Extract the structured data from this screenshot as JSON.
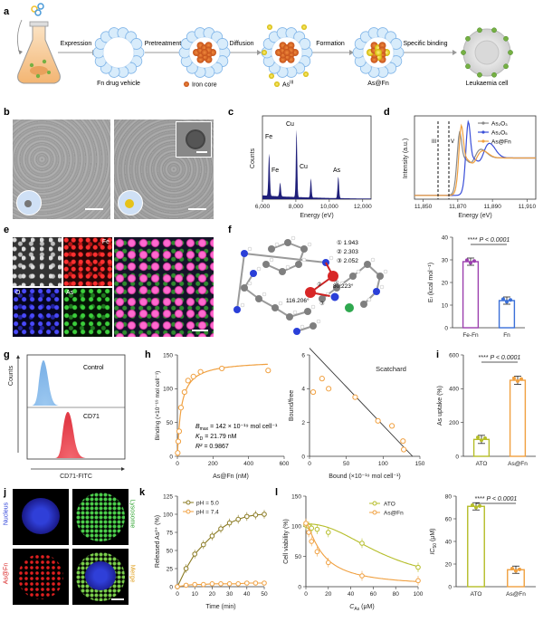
{
  "panel_letters": [
    "a",
    "b",
    "c",
    "d",
    "e",
    "f",
    "g",
    "h",
    "i",
    "j",
    "k",
    "l"
  ],
  "colors": {
    "orange": "#f0a040",
    "blue": "#3a6fd8",
    "green": "#b5bd28",
    "purple": "#9b3fae",
    "red": "#e23b3b",
    "navy": "#1a1a7a",
    "grey": "#7f7f7f"
  },
  "panel_a": {
    "arrows": [
      "Expression",
      "Pretreatment",
      "Diffusion",
      "Formation",
      "Specific binding"
    ],
    "stages": [
      "Fn drug vehicle",
      "Iron core",
      "As@Fn",
      "Leukaemia cell"
    ],
    "legend": [
      "Iron core",
      "As"
    ],
    "legend_sup": "III"
  },
  "panel_b": {
    "alt": "TEM micrographs of Fn and As@Fn nanocages"
  },
  "panel_e": {
    "channels": [
      "Fe",
      "O",
      "As"
    ]
  },
  "panel_f": {
    "distances": [
      "① 1.943",
      "② 2.303",
      "③ 2.052"
    ],
    "angles": [
      "80.223°",
      "116.206°"
    ],
    "atom_labels": [
      "①",
      "②",
      "③"
    ]
  },
  "panel_g": {
    "labels": [
      "Control",
      "CD71"
    ],
    "xlabel": "CD71-FITC",
    "ylabel": "Counts"
  },
  "panel_h": {
    "bmax": "142 × 10⁻¹⁹ mol cell⁻¹",
    "kd": "21.79 nM",
    "r2": "0.9867",
    "bmax_label": "B",
    "bmax_sub": "max",
    "kd_label": "K",
    "kd_sub": "D",
    "r2_label": "R² ="
  },
  "panel_j": {
    "labels": [
      "Nucleus",
      "Lysosome",
      "As@Fn",
      "Merge"
    ]
  },
  "chart_data": [
    {
      "id": "c",
      "type": "line",
      "xlabel": "Energy (eV)",
      "ylabel": "Counts",
      "xlim": [
        6000,
        12500
      ],
      "xticks": [
        "6,000",
        "8,000",
        "10,000",
        "12,000"
      ],
      "peak_labels": [
        "Fe",
        "Fe",
        "Cu",
        "Cu",
        "As"
      ]
    },
    {
      "id": "d",
      "type": "line",
      "xlabel": "Energy (eV)",
      "ylabel": "Intensity (a.u.)",
      "xticks": [
        "11,850",
        "11,870",
        "11,890",
        "11,910"
      ],
      "series": [
        {
          "name": "As₂O₃"
        },
        {
          "name": "As₂O₅"
        },
        {
          "name": "As@Fn"
        }
      ],
      "markers": [
        "III",
        "V"
      ]
    },
    {
      "id": "f",
      "type": "bar",
      "ylabel": "Eₗ (kcal mol⁻¹)",
      "categories": [
        "Fe-Fn",
        "Fn"
      ],
      "values": [
        29.2,
        12.0
      ],
      "ylim": [
        0,
        40
      ],
      "yticks": [
        "0",
        "10",
        "20",
        "30",
        "40"
      ],
      "significance": "****",
      "p_text": "P < 0.0001"
    },
    {
      "id": "h1",
      "type": "scatter",
      "xlabel": "As@Fn (nM)",
      "ylabel": "Binding (×10⁻¹⁹ mol cell⁻¹)",
      "xlim": [
        0,
        600
      ],
      "ylim": [
        0,
        150
      ],
      "xticks": [
        "0",
        "200",
        "400",
        "600"
      ],
      "yticks": [
        "0",
        "50",
        "100",
        "150"
      ],
      "x": [
        2,
        5,
        10,
        20,
        40,
        60,
        90,
        130,
        250,
        510
      ],
      "y": [
        5,
        22,
        37,
        72,
        95,
        112,
        118,
        125,
        130,
        127
      ]
    },
    {
      "id": "h2",
      "type": "scatter",
      "title": "Scatchard",
      "xlabel": "Bound (×10⁻¹⁹ mol cell⁻¹)",
      "ylabel": "Bound/free",
      "xlim": [
        0,
        150
      ],
      "ylim": [
        0,
        6
      ],
      "xticks": [
        "0",
        "50",
        "100",
        "150"
      ],
      "yticks": [
        "0",
        "2",
        "4",
        "6"
      ],
      "x": [
        5,
        17,
        26,
        62,
        93,
        112,
        127,
        128
      ],
      "y": [
        3.8,
        4.6,
        4.0,
        3.5,
        2.1,
        1.8,
        0.9,
        0.4
      ],
      "fit": [
        [
          0,
          6.4
        ],
        [
          140,
          0.0
        ]
      ]
    },
    {
      "id": "i",
      "type": "bar",
      "ylabel": "As uptake (%)",
      "categories": [
        "ATO",
        "As@Fn"
      ],
      "values": [
        100,
        450
      ],
      "ylim": [
        0,
        600
      ],
      "yticks": [
        "0",
        "200",
        "400",
        "600"
      ],
      "significance": "****",
      "p_text": "P < 0.0001"
    },
    {
      "id": "k",
      "type": "line",
      "xlabel": "Time (min)",
      "ylabel": "Released As³⁺ (%)",
      "xlim": [
        0,
        50
      ],
      "ylim": [
        0,
        125
      ],
      "xticks": [
        "0",
        "10",
        "20",
        "30",
        "40",
        "50"
      ],
      "yticks": [
        "0",
        "25",
        "50",
        "75",
        "100",
        "125"
      ],
      "x": [
        0,
        5,
        10,
        15,
        20,
        25,
        30,
        35,
        40,
        45,
        50
      ],
      "series": [
        {
          "name": "pH = 5.0",
          "values": [
            0,
            25,
            45,
            58,
            70,
            80,
            88,
            93,
            97,
            99,
            100
          ]
        },
        {
          "name": "pH = 7.4",
          "values": [
            0,
            2,
            3,
            3,
            4,
            4,
            4,
            4,
            5,
            5,
            5
          ]
        }
      ]
    },
    {
      "id": "l1",
      "type": "line",
      "xlabel": "C",
      "xlabel_sub": "As",
      "xlabel_unit": "(μM)",
      "ylabel": "Cell viability (%)",
      "xlim": [
        0,
        100
      ],
      "ylim": [
        0,
        150
      ],
      "xticks": [
        "0",
        "20",
        "40",
        "60",
        "80",
        "100"
      ],
      "yticks": [
        "0",
        "50",
        "100",
        "150"
      ],
      "x": [
        0,
        2.5,
        5,
        10,
        20,
        50,
        100
      ],
      "series": [
        {
          "name": "ATO",
          "values": [
            102,
            100,
            97,
            95,
            90,
            72,
            32
          ]
        },
        {
          "name": "As@Fn",
          "values": [
            105,
            90,
            75,
            58,
            40,
            18,
            10
          ]
        }
      ]
    },
    {
      "id": "l2",
      "type": "bar",
      "ylabel": "IC",
      "ylabel_sub": "50",
      "ylabel_unit": "(μM)",
      "categories": [
        "ATO",
        "As@Fn"
      ],
      "values": [
        71,
        15
      ],
      "ylim": [
        0,
        80
      ],
      "yticks": [
        "0",
        "20",
        "40",
        "60",
        "80"
      ],
      "significance": "****",
      "p_text": "P < 0.0001"
    }
  ]
}
